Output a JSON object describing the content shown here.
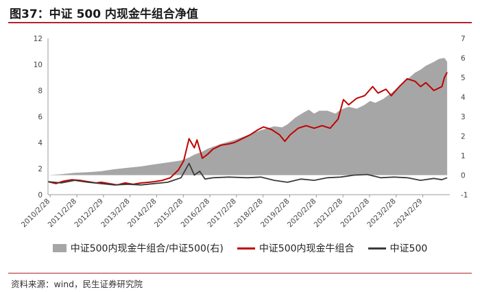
{
  "title": "图37：中证 500 内现金牛组合净值",
  "source": "资料来源：wind，民生证券研究院",
  "chart_data": {
    "type": "line",
    "title": "图37：中证 500 内现金牛组合净值",
    "x_tick_labels": [
      "2010/2/28",
      "2011/2/28",
      "2012/2/29",
      "2013/2/28",
      "2014/2/28",
      "2015/2/28",
      "2016/2/28",
      "2017/2/28",
      "2018/2/28",
      "2019/2/28",
      "2020/2/28",
      "2021/2/28",
      "2022/2/28",
      "2023/2/28",
      "2024/2/29"
    ],
    "xlim": [
      2010.0,
      2025.1
    ],
    "y_left": {
      "lim": [
        0,
        12
      ],
      "ticks": [
        0,
        2,
        4,
        6,
        8,
        10,
        12
      ]
    },
    "y_right": {
      "lim": [
        -1,
        7
      ],
      "ticks": [
        -1,
        0,
        1,
        2,
        3,
        4,
        5,
        6,
        7
      ]
    },
    "grid": false,
    "legend_position": "bottom",
    "series": [
      {
        "name": "中证500内现金牛组合/中证500(右)",
        "type": "area",
        "axis": "right",
        "color": "#a6a6a6",
        "points": [
          [
            2010.0,
            0.0
          ],
          [
            2010.5,
            0.05
          ],
          [
            2011.0,
            0.12
          ],
          [
            2011.5,
            0.15
          ],
          [
            2012.0,
            0.2
          ],
          [
            2012.5,
            0.3
          ],
          [
            2013.0,
            0.38
          ],
          [
            2013.5,
            0.45
          ],
          [
            2014.0,
            0.55
          ],
          [
            2014.5,
            0.65
          ],
          [
            2015.0,
            0.75
          ],
          [
            2015.3,
            0.9
          ],
          [
            2015.5,
            1.05
          ],
          [
            2015.8,
            1.2
          ],
          [
            2016.0,
            1.35
          ],
          [
            2016.5,
            1.6
          ],
          [
            2017.0,
            1.8
          ],
          [
            2017.5,
            2.05
          ],
          [
            2018.0,
            2.3
          ],
          [
            2018.5,
            2.5
          ],
          [
            2018.8,
            2.45
          ],
          [
            2019.0,
            2.6
          ],
          [
            2019.3,
            2.95
          ],
          [
            2019.6,
            3.2
          ],
          [
            2019.8,
            3.35
          ],
          [
            2020.0,
            3.15
          ],
          [
            2020.2,
            3.3
          ],
          [
            2020.5,
            3.3
          ],
          [
            2020.8,
            3.15
          ],
          [
            2021.0,
            3.35
          ],
          [
            2021.3,
            3.5
          ],
          [
            2021.6,
            3.4
          ],
          [
            2021.9,
            3.6
          ],
          [
            2022.1,
            3.8
          ],
          [
            2022.3,
            3.7
          ],
          [
            2022.6,
            3.9
          ],
          [
            2022.9,
            4.2
          ],
          [
            2023.2,
            4.55
          ],
          [
            2023.5,
            4.9
          ],
          [
            2023.8,
            5.25
          ],
          [
            2024.0,
            5.4
          ],
          [
            2024.2,
            5.6
          ],
          [
            2024.5,
            5.8
          ],
          [
            2024.7,
            5.95
          ],
          [
            2024.9,
            6.0
          ],
          [
            2025.0,
            5.8
          ]
        ]
      },
      {
        "name": "中证500内现金牛组合",
        "type": "line",
        "axis": "left",
        "color": "#c00000",
        "points": [
          [
            2010.0,
            1.0
          ],
          [
            2010.3,
            0.85
          ],
          [
            2010.6,
            1.05
          ],
          [
            2010.9,
            1.15
          ],
          [
            2011.2,
            1.1
          ],
          [
            2011.5,
            1.0
          ],
          [
            2011.8,
            0.9
          ],
          [
            2012.0,
            0.95
          ],
          [
            2012.3,
            0.85
          ],
          [
            2012.6,
            0.75
          ],
          [
            2012.9,
            0.9
          ],
          [
            2013.2,
            0.8
          ],
          [
            2013.5,
            0.9
          ],
          [
            2013.8,
            0.95
          ],
          [
            2014.0,
            1.0
          ],
          [
            2014.3,
            1.1
          ],
          [
            2014.6,
            1.3
          ],
          [
            2014.9,
            1.9
          ],
          [
            2015.1,
            2.6
          ],
          [
            2015.3,
            4.3
          ],
          [
            2015.5,
            3.6
          ],
          [
            2015.6,
            4.2
          ],
          [
            2015.8,
            2.8
          ],
          [
            2016.0,
            3.1
          ],
          [
            2016.2,
            3.5
          ],
          [
            2016.5,
            3.8
          ],
          [
            2016.8,
            3.9
          ],
          [
            2017.0,
            4.0
          ],
          [
            2017.3,
            4.3
          ],
          [
            2017.6,
            4.6
          ],
          [
            2017.9,
            5.0
          ],
          [
            2018.1,
            5.2
          ],
          [
            2018.4,
            5.0
          ],
          [
            2018.7,
            4.6
          ],
          [
            2018.9,
            4.1
          ],
          [
            2019.1,
            4.6
          ],
          [
            2019.4,
            5.1
          ],
          [
            2019.7,
            5.3
          ],
          [
            2020.0,
            5.1
          ],
          [
            2020.3,
            5.3
          ],
          [
            2020.6,
            5.1
          ],
          [
            2020.9,
            5.8
          ],
          [
            2021.1,
            7.3
          ],
          [
            2021.3,
            6.9
          ],
          [
            2021.6,
            7.4
          ],
          [
            2021.9,
            7.6
          ],
          [
            2022.2,
            8.3
          ],
          [
            2022.4,
            7.8
          ],
          [
            2022.7,
            8.1
          ],
          [
            2022.9,
            7.6
          ],
          [
            2023.2,
            8.3
          ],
          [
            2023.5,
            8.9
          ],
          [
            2023.8,
            8.7
          ],
          [
            2024.0,
            8.3
          ],
          [
            2024.2,
            8.6
          ],
          [
            2024.5,
            8.0
          ],
          [
            2024.8,
            8.3
          ],
          [
            2024.9,
            9.0
          ],
          [
            2025.0,
            9.4
          ]
        ]
      },
      {
        "name": "中证500",
        "type": "line",
        "axis": "left",
        "color": "#3a3a3a",
        "points": [
          [
            2010.0,
            1.0
          ],
          [
            2010.5,
            0.9
          ],
          [
            2011.0,
            1.1
          ],
          [
            2011.5,
            0.95
          ],
          [
            2012.0,
            0.85
          ],
          [
            2012.5,
            0.75
          ],
          [
            2013.0,
            0.8
          ],
          [
            2013.5,
            0.75
          ],
          [
            2014.0,
            0.85
          ],
          [
            2014.5,
            0.95
          ],
          [
            2015.0,
            1.3
          ],
          [
            2015.3,
            2.4
          ],
          [
            2015.5,
            1.5
          ],
          [
            2015.7,
            1.8
          ],
          [
            2015.9,
            1.2
          ],
          [
            2016.2,
            1.3
          ],
          [
            2016.8,
            1.35
          ],
          [
            2017.5,
            1.3
          ],
          [
            2018.0,
            1.35
          ],
          [
            2018.5,
            1.1
          ],
          [
            2019.0,
            0.95
          ],
          [
            2019.5,
            1.2
          ],
          [
            2020.0,
            1.1
          ],
          [
            2020.5,
            1.3
          ],
          [
            2021.0,
            1.35
          ],
          [
            2021.5,
            1.5
          ],
          [
            2022.0,
            1.55
          ],
          [
            2022.5,
            1.3
          ],
          [
            2023.0,
            1.35
          ],
          [
            2023.5,
            1.3
          ],
          [
            2024.0,
            1.1
          ],
          [
            2024.5,
            1.25
          ],
          [
            2024.8,
            1.15
          ],
          [
            2025.0,
            1.3
          ]
        ]
      }
    ]
  }
}
